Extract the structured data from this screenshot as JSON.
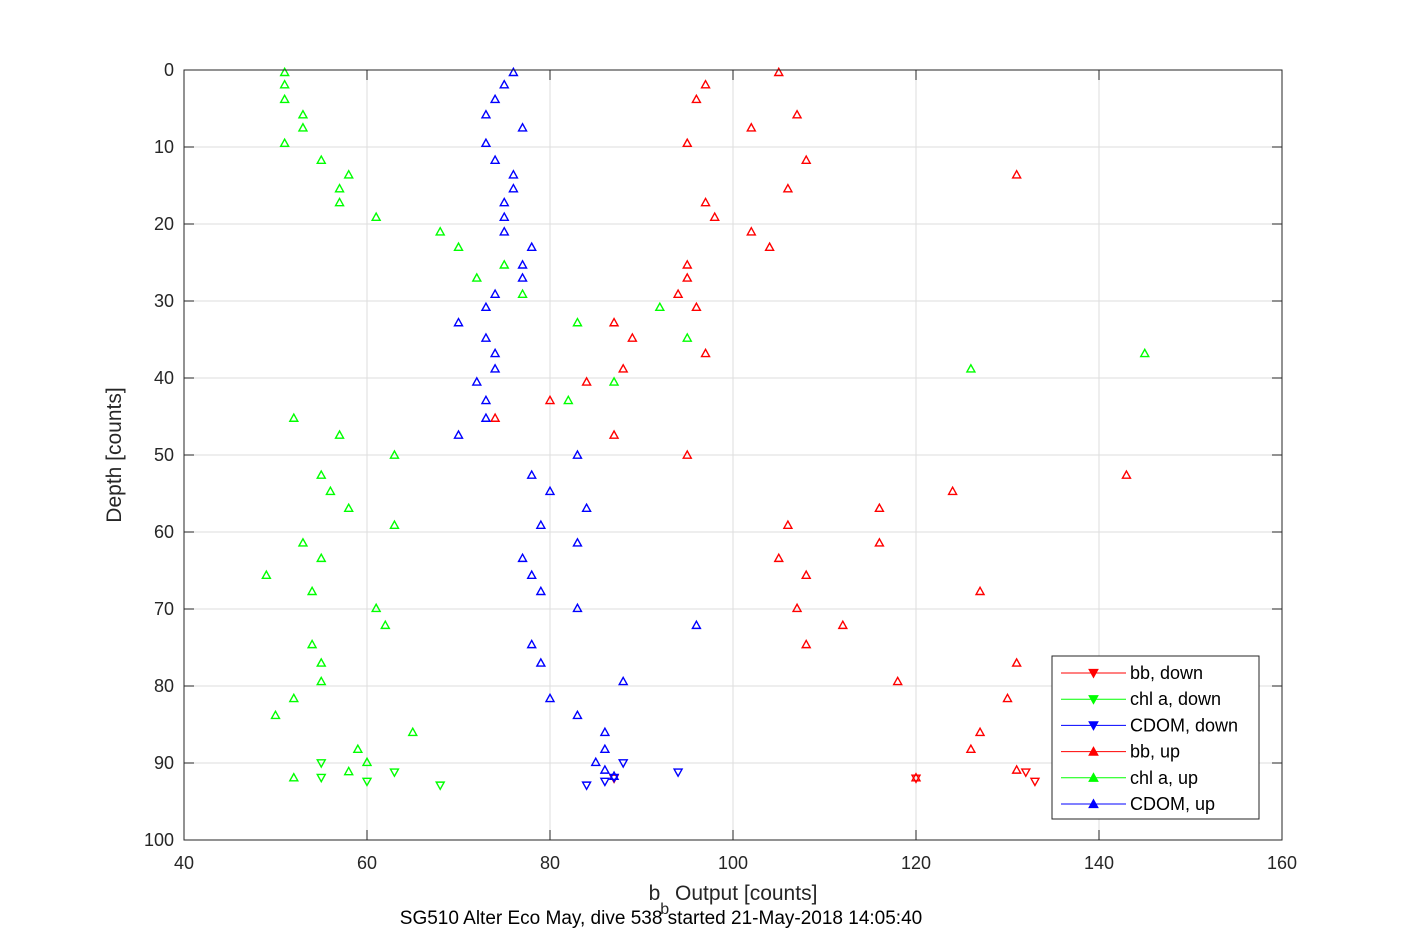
{
  "chart_data": {
    "type": "scatter",
    "xlabel_main": "b",
    "xlabel_sub": "b",
    "xlabel_rest": " Output [counts]",
    "ylabel": "Depth [counts]",
    "subtitle": "SG510 Alter Eco May, dive 538 started 21-May-2018 14:05:40",
    "xlim": [
      40,
      160
    ],
    "ylim": [
      0,
      100
    ],
    "y_reversed": true,
    "grid": true,
    "legend_position": "lower-right",
    "x_ticks": [
      40,
      60,
      80,
      100,
      120,
      140,
      160
    ],
    "y_ticks": [
      0,
      10,
      20,
      30,
      40,
      50,
      60,
      70,
      80,
      90,
      100
    ],
    "series": [
      {
        "name": "bb, down",
        "color": "#ff0000",
        "marker": "down",
        "points": [
          [
            133,
            92.4
          ],
          [
            132,
            91.2
          ],
          [
            120,
            92
          ],
          [
            87,
            92
          ]
        ]
      },
      {
        "name": "chl a, down",
        "color": "#00ff00",
        "marker": "down",
        "points": [
          [
            68,
            92.9
          ],
          [
            63,
            91.2
          ],
          [
            60,
            92.4
          ],
          [
            55,
            91.9
          ],
          [
            55,
            90
          ]
        ]
      },
      {
        "name": "CDOM, down",
        "color": "#0000ff",
        "marker": "down",
        "points": [
          [
            84,
            92.9
          ],
          [
            86,
            92.4
          ],
          [
            87,
            91.9
          ],
          [
            94,
            91.2
          ],
          [
            88,
            90
          ]
        ]
      },
      {
        "name": "bb, up",
        "color": "#ff0000",
        "marker": "up",
        "points": [
          [
            105,
            0.3
          ],
          [
            97,
            1.9
          ],
          [
            96,
            3.8
          ],
          [
            107,
            5.8
          ],
          [
            102,
            7.5
          ],
          [
            95,
            9.5
          ],
          [
            108,
            11.7
          ],
          [
            131,
            13.6
          ],
          [
            106,
            15.4
          ],
          [
            97,
            17.2
          ],
          [
            98,
            19.1
          ],
          [
            102,
            21
          ],
          [
            104,
            23
          ],
          [
            95,
            25.3
          ],
          [
            95,
            27
          ],
          [
            94,
            29.1
          ],
          [
            96,
            30.8
          ],
          [
            87,
            32.8
          ],
          [
            89,
            34.8
          ],
          [
            97,
            36.8
          ],
          [
            88,
            38.8
          ],
          [
            84,
            40.5
          ],
          [
            80,
            42.9
          ],
          [
            74,
            45.2
          ],
          [
            87,
            47.4
          ],
          [
            95,
            50
          ],
          [
            143,
            52.6
          ],
          [
            124,
            54.7
          ],
          [
            116,
            56.9
          ],
          [
            106,
            59.1
          ],
          [
            116,
            61.4
          ],
          [
            105,
            63.4
          ],
          [
            108,
            65.6
          ],
          [
            127,
            67.7
          ],
          [
            107,
            69.9
          ],
          [
            112,
            72.1
          ],
          [
            108,
            74.6
          ],
          [
            131,
            77
          ],
          [
            118,
            79.4
          ],
          [
            130,
            81.6
          ],
          [
            127,
            86
          ],
          [
            126,
            88.2
          ],
          [
            131,
            90.9
          ],
          [
            120,
            91.9
          ]
        ]
      },
      {
        "name": "chl a, up",
        "color": "#00ff00",
        "marker": "up",
        "points": [
          [
            51,
            0.3
          ],
          [
            51,
            1.9
          ],
          [
            51,
            3.8
          ],
          [
            53,
            5.8
          ],
          [
            53,
            7.5
          ],
          [
            51,
            9.5
          ],
          [
            55,
            11.7
          ],
          [
            58,
            13.6
          ],
          [
            57,
            15.4
          ],
          [
            57,
            17.2
          ],
          [
            61,
            19.1
          ],
          [
            68,
            21
          ],
          [
            70,
            23
          ],
          [
            75,
            25.3
          ],
          [
            72,
            27
          ],
          [
            77,
            29.1
          ],
          [
            92,
            30.8
          ],
          [
            83,
            32.8
          ],
          [
            95,
            34.8
          ],
          [
            145,
            36.8
          ],
          [
            126,
            38.8
          ],
          [
            87,
            40.5
          ],
          [
            82,
            42.9
          ],
          [
            52,
            45.2
          ],
          [
            57,
            47.4
          ],
          [
            63,
            50
          ],
          [
            55,
            52.6
          ],
          [
            56,
            54.7
          ],
          [
            58,
            56.9
          ],
          [
            63,
            59.1
          ],
          [
            53,
            61.4
          ],
          [
            55,
            63.4
          ],
          [
            49,
            65.6
          ],
          [
            54,
            67.7
          ],
          [
            61,
            69.9
          ],
          [
            62,
            72.1
          ],
          [
            54,
            74.6
          ],
          [
            55,
            77
          ],
          [
            55,
            79.4
          ],
          [
            52,
            81.6
          ],
          [
            50,
            83.8
          ],
          [
            65,
            86
          ],
          [
            59,
            88.2
          ],
          [
            60,
            89.9
          ],
          [
            58,
            91.1
          ],
          [
            52,
            91.9
          ]
        ]
      },
      {
        "name": "CDOM, up",
        "color": "#0000ff",
        "marker": "up",
        "points": [
          [
            76,
            0.3
          ],
          [
            75,
            1.9
          ],
          [
            74,
            3.8
          ],
          [
            73,
            5.8
          ],
          [
            77,
            7.5
          ],
          [
            73,
            9.5
          ],
          [
            74,
            11.7
          ],
          [
            76,
            13.6
          ],
          [
            76,
            15.4
          ],
          [
            75,
            17.2
          ],
          [
            75,
            19.1
          ],
          [
            75,
            21
          ],
          [
            78,
            23
          ],
          [
            77,
            25.3
          ],
          [
            77,
            27
          ],
          [
            74,
            29.1
          ],
          [
            73,
            30.8
          ],
          [
            70,
            32.8
          ],
          [
            73,
            34.8
          ],
          [
            74,
            36.8
          ],
          [
            74,
            38.8
          ],
          [
            72,
            40.5
          ],
          [
            73,
            42.9
          ],
          [
            73,
            45.2
          ],
          [
            70,
            47.4
          ],
          [
            83,
            50
          ],
          [
            78,
            52.6
          ],
          [
            80,
            54.7
          ],
          [
            84,
            56.9
          ],
          [
            79,
            59.1
          ],
          [
            83,
            61.4
          ],
          [
            77,
            63.4
          ],
          [
            78,
            65.6
          ],
          [
            79,
            67.7
          ],
          [
            83,
            69.9
          ],
          [
            96,
            72.1
          ],
          [
            78,
            74.6
          ],
          [
            79,
            77
          ],
          [
            88,
            79.4
          ],
          [
            80,
            81.6
          ],
          [
            83,
            83.8
          ],
          [
            86,
            86
          ],
          [
            86,
            88.2
          ],
          [
            85,
            89.9
          ],
          [
            86,
            90.9
          ],
          [
            87,
            91.7
          ]
        ]
      }
    ]
  }
}
